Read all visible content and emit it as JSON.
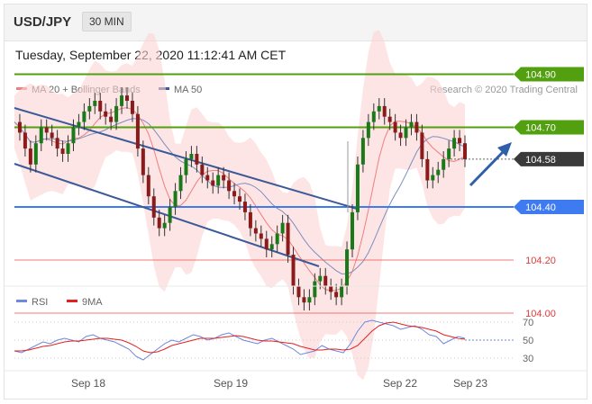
{
  "header": {
    "pair": "USD/JPY",
    "timeframe": "30 MIN"
  },
  "timestamp": "Tuesday, September 22, 2020 11:12:41 AM CET",
  "legend": {
    "ma20": "MA 20 + Bollinger Bands",
    "ma50": "MA 50",
    "credit": "Research © 2020 Trading Central",
    "ma20_color": "#f07f7f",
    "ma50_color": "#3b5a97"
  },
  "rsi_legend": {
    "rsi": "RSI",
    "ma9": "9MA",
    "rsi_color": "#6f87dd",
    "ma9_color": "#e22222"
  },
  "chart_data": [
    {
      "type": "line",
      "title": "",
      "price_levels": [
        {
          "value": 104.9,
          "label": "104.90",
          "kind": "target",
          "color": "#52a00f"
        },
        {
          "value": 104.7,
          "label": "104.70",
          "kind": "resistance",
          "color": "#52a00f"
        },
        {
          "value": 104.58,
          "label": "104.58",
          "kind": "current",
          "color": "#3a3a3a"
        },
        {
          "value": 104.4,
          "label": "104.40",
          "kind": "pivot",
          "color": "#3f7bf0"
        },
        {
          "value": 104.2,
          "label": "104.20",
          "kind": "support",
          "color": "#f05a5a"
        },
        {
          "value": 104.0,
          "label": "104.00",
          "kind": "support",
          "color": "#f05a5a"
        }
      ],
      "x_ticks": [
        "Sep 18",
        "Sep 19",
        "Sep 22",
        "Sep 23"
      ],
      "ylim": [
        103.93,
        105.2
      ],
      "series": [
        {
          "kind": "price",
          "x": [
            0,
            6,
            12,
            18,
            24,
            30,
            36,
            42,
            48,
            54,
            60,
            66,
            72,
            78,
            84,
            90,
            96,
            102,
            108,
            114,
            120,
            126,
            132,
            138,
            144,
            150,
            156,
            162,
            168,
            174,
            180,
            186,
            192,
            198,
            204,
            210,
            216,
            222,
            228,
            234,
            240,
            246,
            252,
            258,
            264,
            270,
            276,
            282,
            288,
            294,
            300,
            306,
            312,
            318,
            324,
            330,
            336,
            342,
            348,
            354,
            360,
            366,
            372,
            378,
            384,
            390,
            396,
            402,
            408,
            414,
            420,
            426,
            432,
            438,
            444,
            450,
            456,
            462,
            468,
            474,
            480,
            486,
            492,
            498,
            504
          ],
          "values": [
            104.72,
            104.68,
            104.62,
            104.56,
            104.64,
            104.7,
            104.68,
            104.66,
            104.62,
            104.6,
            104.64,
            104.7,
            104.72,
            104.76,
            104.78,
            104.8,
            104.76,
            104.74,
            104.72,
            104.78,
            104.82,
            104.8,
            104.75,
            104.62,
            104.52,
            104.44,
            104.36,
            104.32,
            104.34,
            104.4,
            104.46,
            104.52,
            104.58,
            104.6,
            104.56,
            104.52,
            104.5,
            104.48,
            104.52,
            104.5,
            104.46,
            104.44,
            104.42,
            104.38,
            104.32,
            104.3,
            104.28,
            104.24,
            104.26,
            104.3,
            104.34,
            104.22,
            104.1,
            104.06,
            104.04,
            104.06,
            104.12,
            104.14,
            104.1,
            104.08,
            104.06,
            104.1,
            104.24,
            104.38,
            104.56,
            104.66,
            104.72,
            104.76,
            104.78,
            104.74,
            104.72,
            104.68,
            104.66,
            104.7,
            104.72,
            104.68,
            104.58,
            104.5,
            104.52,
            104.54,
            104.58,
            104.62,
            104.66,
            104.64,
            104.58
          ]
        }
      ]
    },
    {
      "type": "line",
      "title": "",
      "ylim": [
        20,
        80
      ],
      "y_ticks": [
        70,
        50,
        30
      ],
      "series": [
        {
          "name": "RSI",
          "values": [
            38,
            36,
            40,
            44,
            48,
            46,
            50,
            52,
            50,
            48,
            54,
            56,
            52,
            50,
            48,
            44,
            40,
            32,
            28,
            34,
            40,
            46,
            50,
            48,
            52,
            56,
            54,
            50,
            52,
            56,
            58,
            54,
            50,
            48,
            46,
            50,
            52,
            48,
            44,
            40,
            34,
            36,
            38,
            44,
            40,
            38,
            36,
            46,
            60,
            70,
            72,
            70,
            68,
            66,
            62,
            64,
            66,
            62,
            56,
            54,
            46,
            50,
            54,
            52
          ]
        },
        {
          "name": "9MA",
          "values": [
            38,
            38,
            39,
            41,
            43,
            44,
            46,
            48,
            49,
            49,
            50,
            51,
            52,
            52,
            51,
            50,
            47,
            43,
            38,
            36,
            37,
            40,
            44,
            46,
            48,
            50,
            52,
            52,
            52,
            53,
            54,
            55,
            54,
            52,
            50,
            49,
            49,
            48,
            47,
            46,
            43,
            41,
            39,
            39,
            40,
            40,
            39,
            40,
            44,
            52,
            60,
            66,
            69,
            70,
            68,
            66,
            65,
            64,
            62,
            60,
            56,
            54,
            52,
            51
          ]
        }
      ]
    }
  ]
}
